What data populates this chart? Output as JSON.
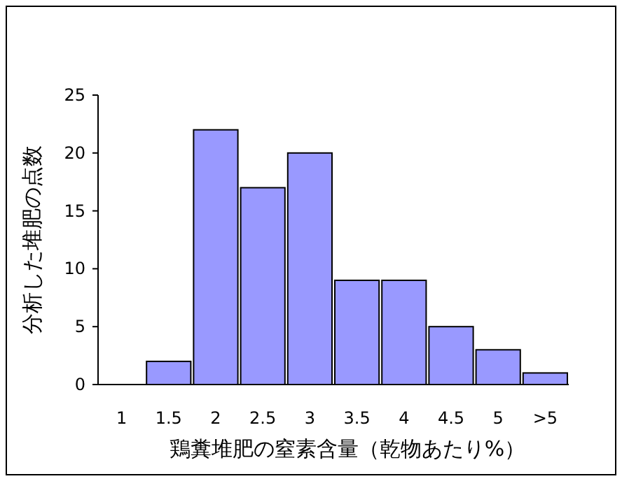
{
  "chart_data": {
    "type": "bar",
    "xlabel": "鶏糞堆肥の窒素含量（乾物あたり%）",
    "ylabel": "分析した堆肥の点数",
    "categories": [
      "1",
      "1.5",
      "2",
      "2.5",
      "3",
      "3.5",
      "4",
      "4.5",
      "5",
      ">5"
    ],
    "values": [
      0,
      2,
      22,
      17,
      20,
      9,
      9,
      5,
      3,
      1
    ],
    "color": "#9999ff",
    "ylim": [
      0,
      25
    ],
    "yticks": [
      0,
      5,
      10,
      15,
      20,
      25
    ]
  }
}
